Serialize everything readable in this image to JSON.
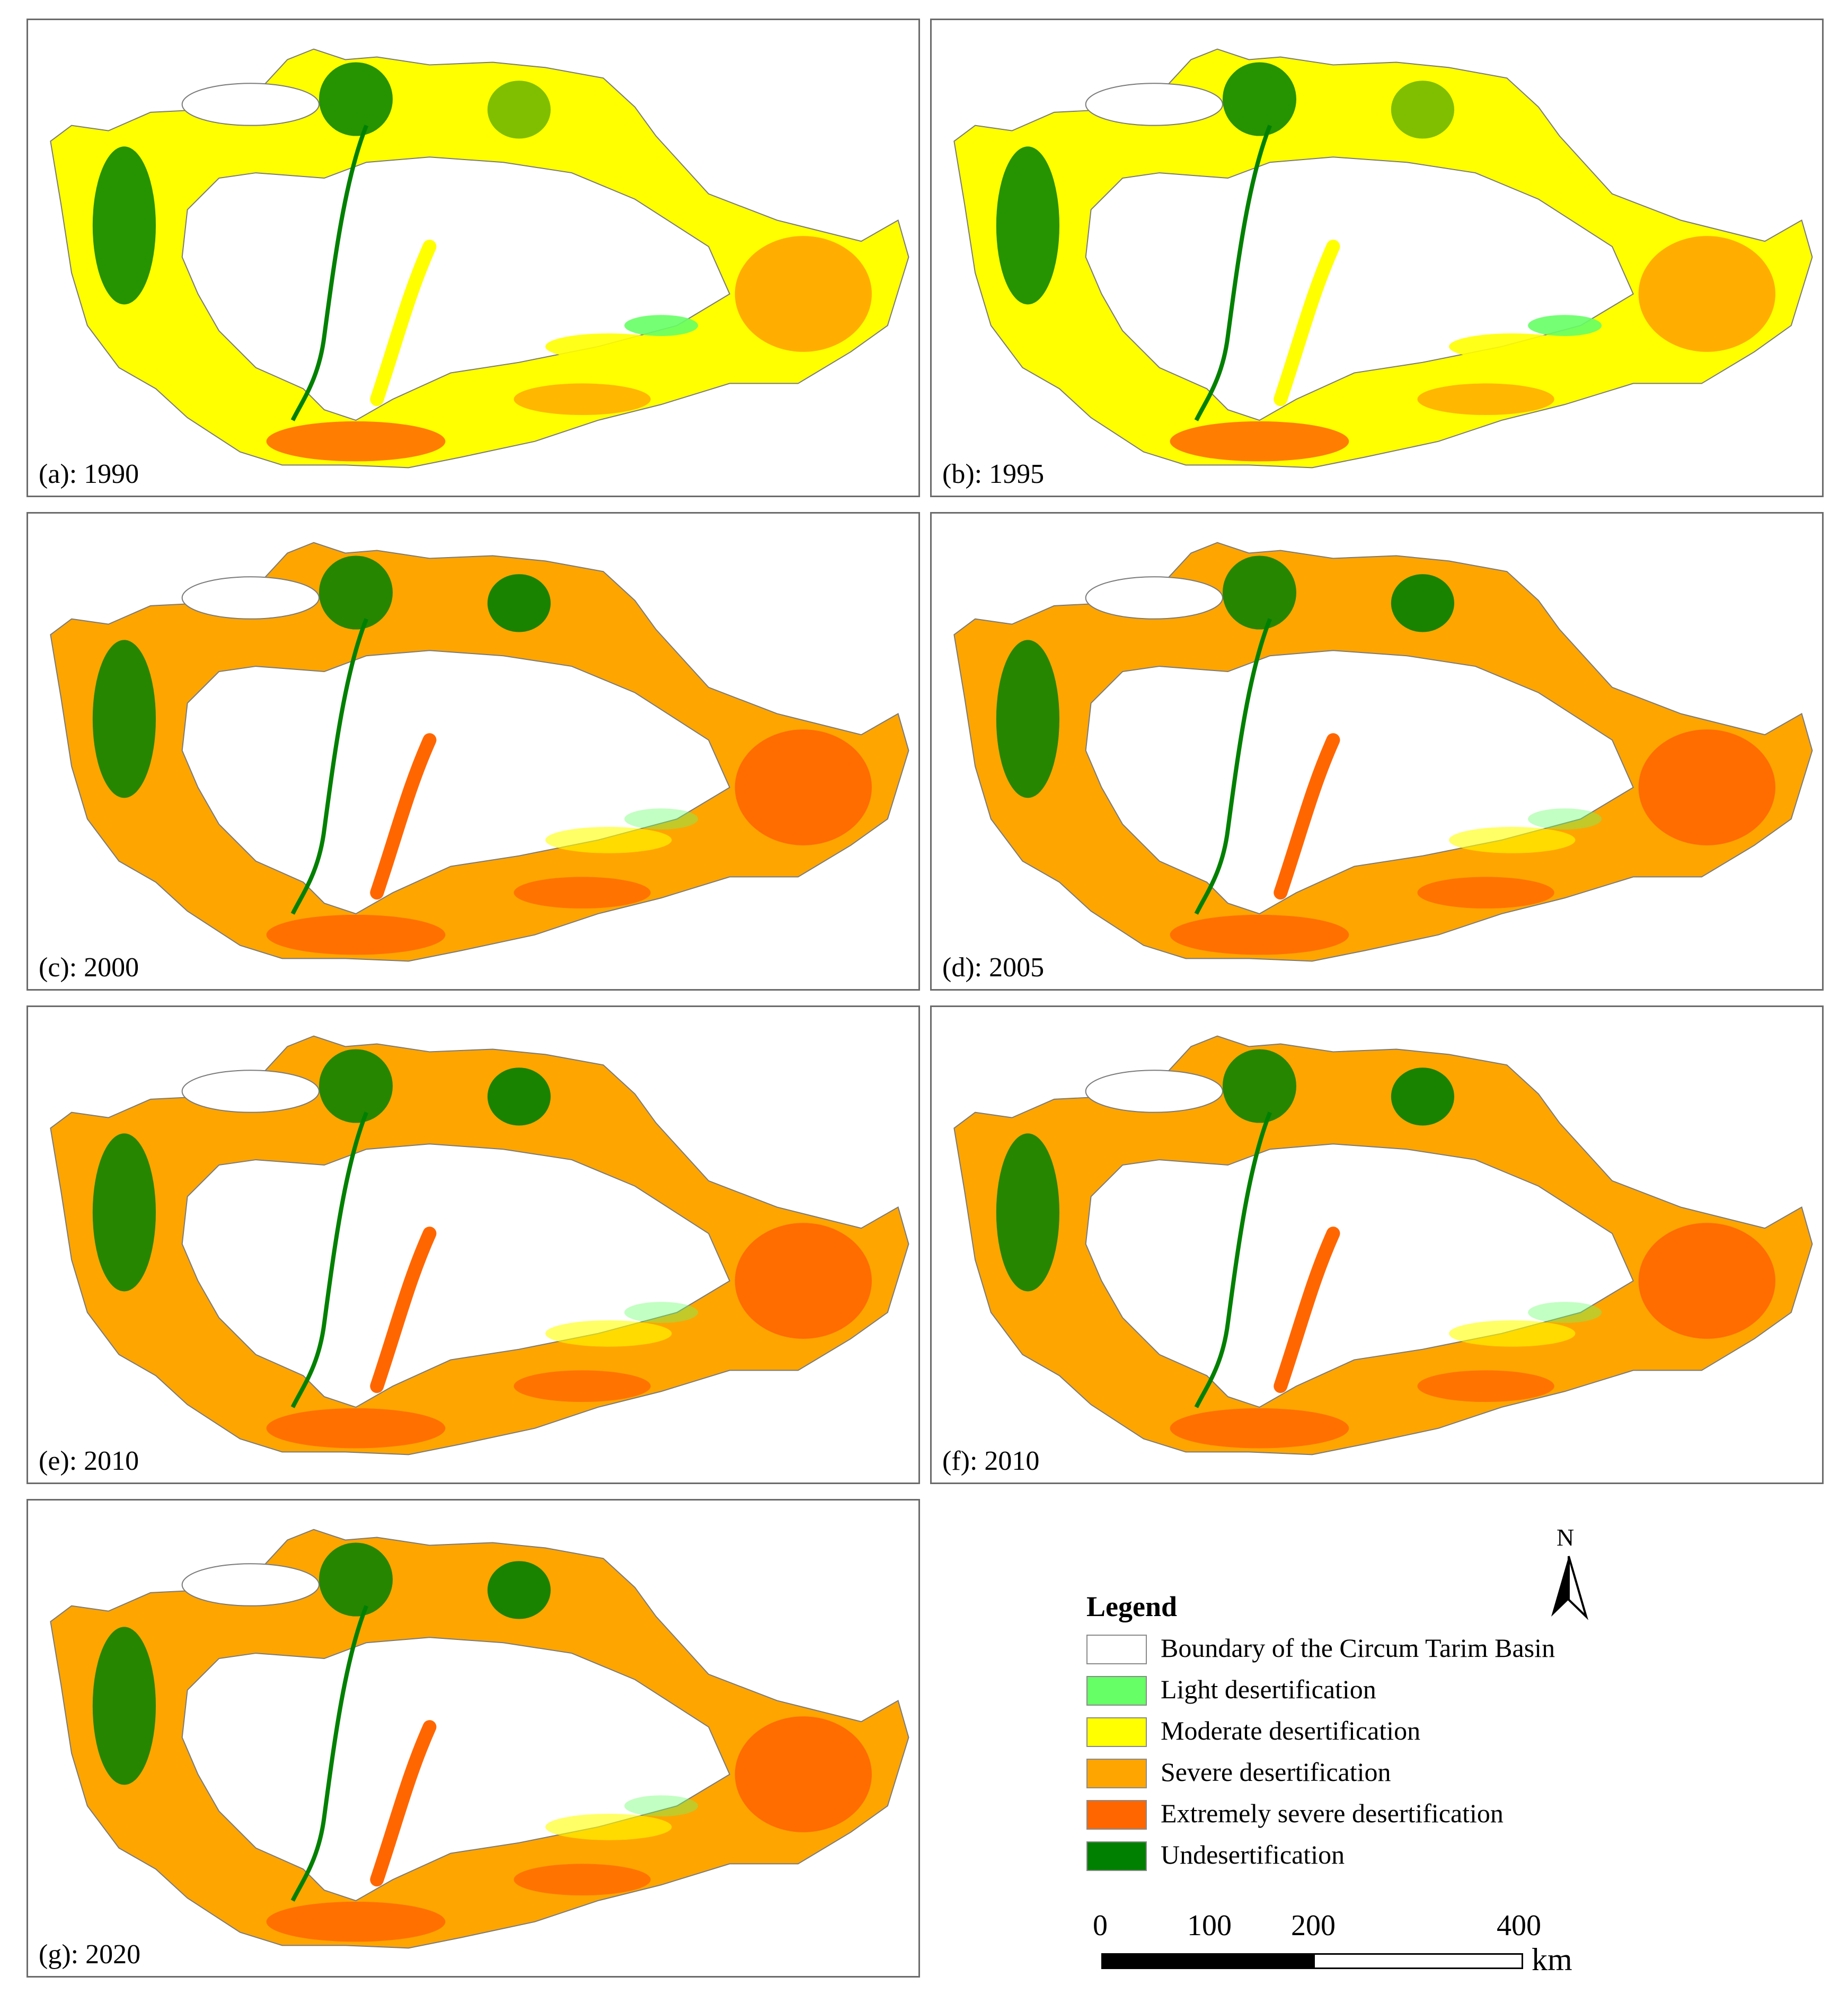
{
  "colors": {
    "boundary": "#ffffff",
    "light": "#66ff66",
    "moderate": "#ffff00",
    "severe": "#ffa500",
    "extreme": "#ff6600",
    "undesertification": "#008000"
  },
  "panels": [
    {
      "id": "a",
      "label": "(a): 1990",
      "dominant": "moderate"
    },
    {
      "id": "b",
      "label": "(b): 1995",
      "dominant": "moderate"
    },
    {
      "id": "c",
      "label": "(c): 2000",
      "dominant": "severe"
    },
    {
      "id": "d",
      "label": "(d): 2005",
      "dominant": "severe"
    },
    {
      "id": "e",
      "label": "(e): 2010",
      "dominant": "severe"
    },
    {
      "id": "f",
      "label": "(f): 2010",
      "dominant": "severe"
    },
    {
      "id": "g",
      "label": "(g): 2020",
      "dominant": "severe"
    }
  ],
  "legend": {
    "title": "Legend",
    "items": [
      {
        "label": "Boundary of the Circum Tarim Basin",
        "color": "#ffffff"
      },
      {
        "label": "Light desertification",
        "color": "#66ff66"
      },
      {
        "label": "Moderate desertification",
        "color": "#ffff00"
      },
      {
        "label": "Severe desertification",
        "color": "#ffa500"
      },
      {
        "label": "Extremely severe desertification",
        "color": "#ff6600"
      },
      {
        "label": "Undesertification",
        "color": "#008000"
      }
    ]
  },
  "north_arrow": {
    "letter": "N",
    "icon": "north-arrow-icon"
  },
  "scale_bar": {
    "ticks": [
      "0",
      "100",
      "200",
      "400"
    ],
    "unit": "km"
  }
}
